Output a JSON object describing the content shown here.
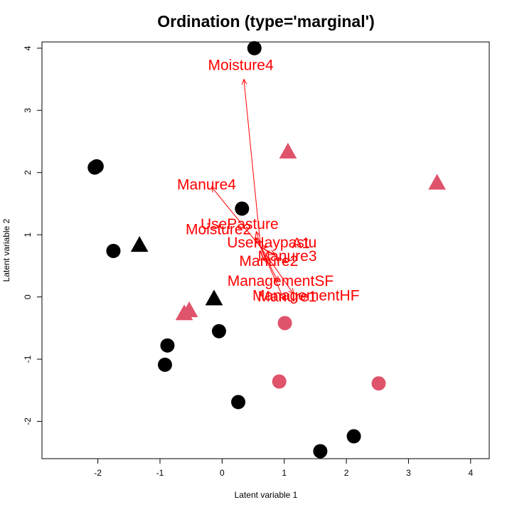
{
  "chart_data": {
    "type": "scatter",
    "title": "Ordination (type='marginal')",
    "xlabel": "Latent variable 1",
    "ylabel": "Latent variable 2",
    "xlim": [
      -2.9,
      4.3
    ],
    "ylim": [
      -2.6,
      4.1
    ],
    "xticks": [
      -2,
      -1,
      0,
      1,
      2,
      3,
      4
    ],
    "yticks": [
      -2,
      -1,
      0,
      1,
      2,
      3,
      4
    ],
    "grid": false,
    "colors": {
      "black": "#000000",
      "pink": "#DF536B",
      "arrow": "#FF0000"
    },
    "points": [
      {
        "x": 0.52,
        "y": 4.0,
        "shape": "circle",
        "color": "black"
      },
      {
        "x": -2.02,
        "y": 2.1,
        "shape": "circle",
        "color": "black"
      },
      {
        "x": -2.05,
        "y": 2.08,
        "shape": "circle",
        "color": "black"
      },
      {
        "x": -1.75,
        "y": 0.74,
        "shape": "circle",
        "color": "black"
      },
      {
        "x": 0.32,
        "y": 1.42,
        "shape": "circle",
        "color": "black"
      },
      {
        "x": -0.05,
        "y": -0.55,
        "shape": "circle",
        "color": "black"
      },
      {
        "x": -0.88,
        "y": -0.78,
        "shape": "circle",
        "color": "black"
      },
      {
        "x": -0.92,
        "y": -1.09,
        "shape": "circle",
        "color": "black"
      },
      {
        "x": 0.26,
        "y": -1.69,
        "shape": "circle",
        "color": "black"
      },
      {
        "x": 2.12,
        "y": -2.24,
        "shape": "circle",
        "color": "black"
      },
      {
        "x": 1.58,
        "y": -2.48,
        "shape": "circle",
        "color": "black"
      },
      {
        "x": -1.33,
        "y": 0.83,
        "shape": "triangle",
        "color": "black"
      },
      {
        "x": -0.13,
        "y": -0.03,
        "shape": "triangle",
        "color": "black"
      },
      {
        "x": 1.06,
        "y": 2.33,
        "shape": "triangle",
        "color": "pink"
      },
      {
        "x": 3.46,
        "y": 1.83,
        "shape": "triangle",
        "color": "pink"
      },
      {
        "x": -0.53,
        "y": -0.22,
        "shape": "triangle",
        "color": "pink"
      },
      {
        "x": -0.61,
        "y": -0.27,
        "shape": "triangle",
        "color": "pink"
      },
      {
        "x": 1.01,
        "y": -0.42,
        "shape": "circle",
        "color": "pink"
      },
      {
        "x": 0.92,
        "y": -1.36,
        "shape": "circle",
        "color": "pink"
      },
      {
        "x": 2.52,
        "y": -1.39,
        "shape": "circle",
        "color": "pink"
      }
    ],
    "origin": [
      0.62,
      0.8
    ],
    "arrows": [
      {
        "label": "Moisture4",
        "x": 0.35,
        "y": 3.5,
        "lx": 0.3,
        "ly": 3.72
      },
      {
        "label": "Manure4",
        "x": -0.17,
        "y": 1.77,
        "lx": -0.25,
        "ly": 1.8
      },
      {
        "label": "UsePasture",
        "x": 0.55,
        "y": 1.05,
        "lx": 0.28,
        "ly": 1.17
      },
      {
        "label": "Moisture2",
        "x": 0.55,
        "y": 0.95,
        "lx": -0.06,
        "ly": 1.08
      },
      {
        "label": "UseHaypastu",
        "x": 0.72,
        "y": 0.8,
        "lx": 0.8,
        "ly": 0.87
      },
      {
        "label": "A1",
        "x": 0.85,
        "y": 0.68,
        "lx": 1.27,
        "ly": 0.86
      },
      {
        "label": "Manure3",
        "x": 1.05,
        "y": 0.55,
        "lx": 1.05,
        "ly": 0.65
      },
      {
        "label": "Manure2",
        "x": 0.72,
        "y": 0.55,
        "lx": 0.75,
        "ly": 0.57
      },
      {
        "label": "ManagementSF",
        "x": 0.9,
        "y": 0.25,
        "lx": 0.94,
        "ly": 0.25
      },
      {
        "label": "ManagementHF",
        "x": 1.15,
        "y": 0.05,
        "lx": 1.35,
        "ly": 0.02
      },
      {
        "label": "Manure1",
        "x": 1.0,
        "y": -0.05,
        "lx": 1.05,
        "ly": 0.0
      }
    ]
  }
}
